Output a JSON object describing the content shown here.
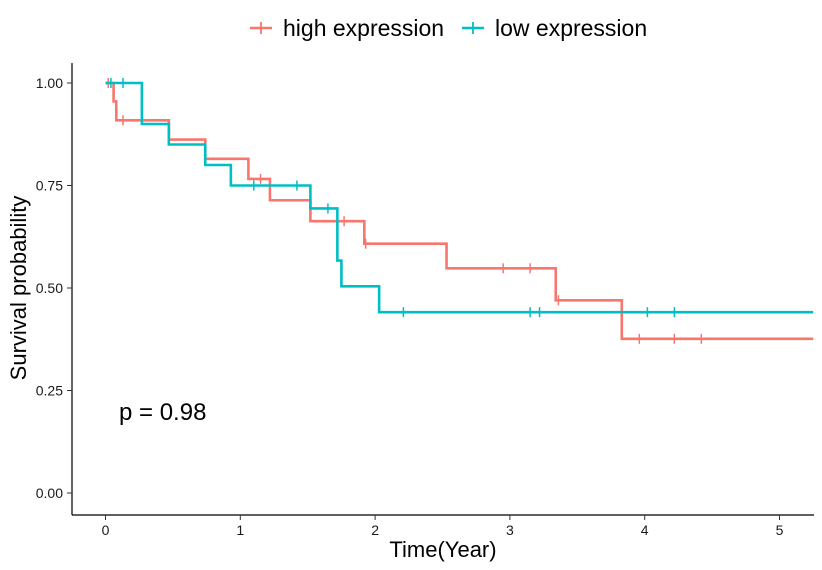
{
  "chart_data": {
    "type": "line",
    "chart_kind": "kaplan-meier survival curve",
    "xlabel": "Time(Year)",
    "ylabel": "Survival probability",
    "xlim": [
      -0.25,
      5.25
    ],
    "ylim": [
      -0.05,
      1.05
    ],
    "xticks": [
      0,
      1,
      2,
      3,
      4,
      5
    ],
    "yticks": [
      0.0,
      0.25,
      0.5,
      0.75,
      1.0
    ],
    "ytick_labels": [
      "0.00",
      "0.25",
      "0.50",
      "0.75",
      "1.00"
    ],
    "legend_position": "top",
    "grid": false,
    "annotation": "p = 0.98",
    "series": [
      {
        "name": "high expression",
        "color": "#F8766D",
        "steps": [
          [
            0,
            1.0
          ],
          [
            0.06,
            0.955
          ],
          [
            0.08,
            0.909
          ],
          [
            0.47,
            0.862
          ],
          [
            0.74,
            0.815
          ],
          [
            1.06,
            0.766
          ],
          [
            1.22,
            0.714
          ],
          [
            1.52,
            0.663
          ],
          [
            1.92,
            0.608
          ],
          [
            2.53,
            0.548
          ],
          [
            3.34,
            0.47
          ],
          [
            3.83,
            0.376
          ],
          [
            5.25,
            0.376
          ]
        ],
        "censors": [
          [
            0.02,
            1.0
          ],
          [
            0.13,
            0.909
          ],
          [
            1.15,
            0.766
          ],
          [
            1.77,
            0.663
          ],
          [
            1.93,
            0.608
          ],
          [
            2.95,
            0.548
          ],
          [
            3.15,
            0.548
          ],
          [
            3.36,
            0.47
          ],
          [
            3.96,
            0.376
          ],
          [
            4.22,
            0.376
          ],
          [
            4.42,
            0.376
          ]
        ]
      },
      {
        "name": "low expression",
        "color": "#00BFC4",
        "steps": [
          [
            0,
            1.0
          ],
          [
            0.27,
            0.9
          ],
          [
            0.47,
            0.85
          ],
          [
            0.74,
            0.8
          ],
          [
            0.93,
            0.75
          ],
          [
            1.52,
            0.694
          ],
          [
            1.72,
            0.567
          ],
          [
            1.75,
            0.504
          ],
          [
            2.03,
            0.441
          ],
          [
            5.25,
            0.441
          ]
        ],
        "censors": [
          [
            0.04,
            1.0
          ],
          [
            0.13,
            1.0
          ],
          [
            1.1,
            0.75
          ],
          [
            1.42,
            0.75
          ],
          [
            1.65,
            0.694
          ],
          [
            2.21,
            0.441
          ],
          [
            3.15,
            0.441
          ],
          [
            3.22,
            0.441
          ],
          [
            4.02,
            0.441
          ],
          [
            4.22,
            0.441
          ]
        ]
      }
    ]
  }
}
